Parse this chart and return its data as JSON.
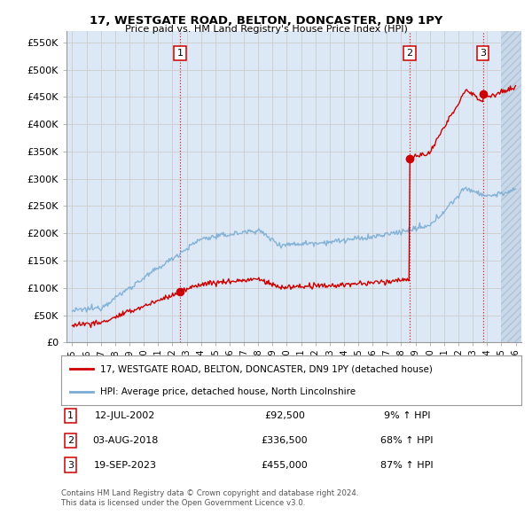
{
  "title": "17, WESTGATE ROAD, BELTON, DONCASTER, DN9 1PY",
  "subtitle": "Price paid vs. HM Land Registry's House Price Index (HPI)",
  "ylabel_ticks": [
    "£0",
    "£50K",
    "£100K",
    "£150K",
    "£200K",
    "£250K",
    "£300K",
    "£350K",
    "£400K",
    "£450K",
    "£500K",
    "£550K"
  ],
  "ytick_values": [
    0,
    50000,
    100000,
    150000,
    200000,
    250000,
    300000,
    350000,
    400000,
    450000,
    500000,
    550000
  ],
  "xmin": 1994.6,
  "xmax": 2026.4,
  "ymin": 0,
  "ymax": 570000,
  "sale_color": "#cc0000",
  "hpi_color": "#7aadd4",
  "transaction_dates": [
    2002.54,
    2018.59,
    2023.72
  ],
  "transaction_prices": [
    92500,
    336500,
    455000
  ],
  "transaction_labels": [
    "1",
    "2",
    "3"
  ],
  "legend_label_sale": "17, WESTGATE ROAD, BELTON, DONCASTER, DN9 1PY (detached house)",
  "legend_label_hpi": "HPI: Average price, detached house, North Lincolnshire",
  "table_rows": [
    {
      "num": "1",
      "date": "12-JUL-2002",
      "price": "£92,500",
      "pct": "9% ↑ HPI"
    },
    {
      "num": "2",
      "date": "03-AUG-2018",
      "price": "£336,500",
      "pct": "68% ↑ HPI"
    },
    {
      "num": "3",
      "date": "19-SEP-2023",
      "price": "£455,000",
      "pct": "87% ↑ HPI"
    }
  ],
  "footnote1": "Contains HM Land Registry data © Crown copyright and database right 2024.",
  "footnote2": "This data is licensed under the Open Government Licence v3.0.",
  "background_color": "#ffffff",
  "grid_color": "#cccccc",
  "plot_bg_color": "#dce8f5",
  "hatch_color": "#c8d8e8",
  "future_cutoff": 2025.0
}
